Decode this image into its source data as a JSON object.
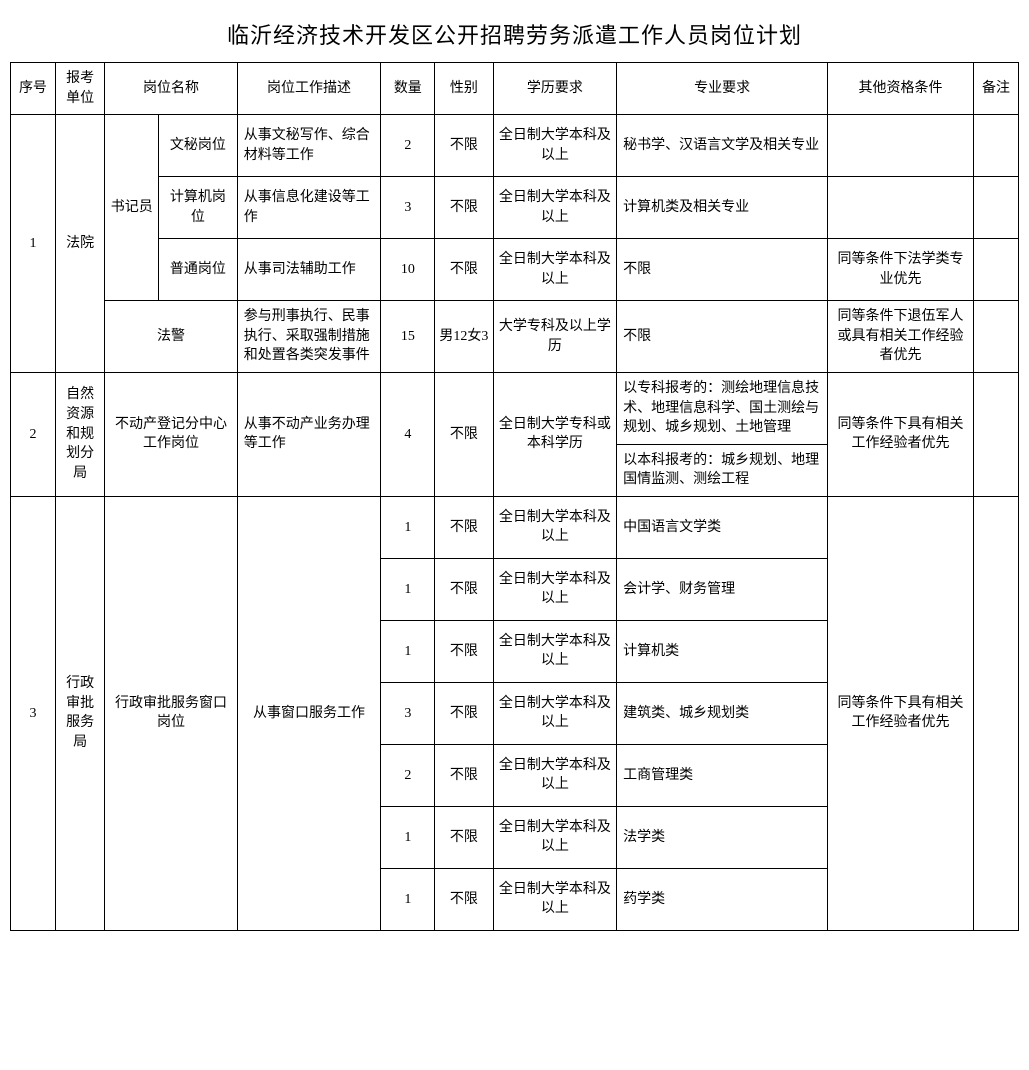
{
  "title": "临沂经济技术开发区公开招聘劳务派遣工作人员岗位计划",
  "headers": {
    "seq": "序号",
    "org": "报考单位",
    "position": "岗位名称",
    "desc": "岗位工作描述",
    "qty": "数量",
    "sex": "性别",
    "edu": "学历要求",
    "major": "专业要求",
    "other": "其他资格条件",
    "note": "备注"
  },
  "group1": {
    "seq": "1",
    "org": "法院",
    "shujiyuan": "书记员",
    "rows": [
      {
        "pos": "文秘岗位",
        "desc": "从事文秘写作、综合材料等工作",
        "qty": "2",
        "sex": "不限",
        "edu": "全日制大学本科及以上",
        "major": "秘书学、汉语言文学及相关专业",
        "other": "",
        "note": ""
      },
      {
        "pos": "计算机岗位",
        "desc": "从事信息化建设等工作",
        "qty": "3",
        "sex": "不限",
        "edu": "全日制大学本科及以上",
        "major": "计算机类及相关专业",
        "other": "",
        "note": ""
      },
      {
        "pos": "普通岗位",
        "desc": "从事司法辅助工作",
        "qty": "10",
        "sex": "不限",
        "edu": "全日制大学本科及以上",
        "major": "不限",
        "other": "同等条件下法学类专业优先",
        "note": ""
      }
    ],
    "fajing": {
      "pos": "法警",
      "desc": "参与刑事执行、民事执行、采取强制措施和处置各类突发事件",
      "qty": "15",
      "sex": "男12女3",
      "edu": "大学专科及以上学历",
      "major": "不限",
      "other": "同等条件下退伍军人或具有相关工作经验者优先",
      "note": ""
    }
  },
  "group2": {
    "seq": "2",
    "org": "自然资源和规划分局",
    "pos": "不动产登记分中心工作岗位",
    "desc": "从事不动产业务办理等工作",
    "qty": "4",
    "sex": "不限",
    "edu": "全日制大学专科或本科学历",
    "major1": "以专科报考的：测绘地理信息技术、地理信息科学、国土测绘与规划、城乡规划、土地管理",
    "major2": "以本科报考的：城乡规划、地理国情监测、测绘工程",
    "other": "同等条件下具有相关工作经验者优先",
    "note": ""
  },
  "group3": {
    "seq": "3",
    "org": "行政审批服务局",
    "pos": "行政审批服务窗口岗位",
    "desc": "从事窗口服务工作",
    "other": "同等条件下具有相关工作经验者优先",
    "rows": [
      {
        "qty": "1",
        "sex": "不限",
        "edu": "全日制大学本科及以上",
        "major": "中国语言文学类",
        "note": ""
      },
      {
        "qty": "1",
        "sex": "不限",
        "edu": "全日制大学本科及以上",
        "major": "会计学、财务管理",
        "note": ""
      },
      {
        "qty": "1",
        "sex": "不限",
        "edu": "全日制大学本科及以上",
        "major": "计算机类",
        "note": ""
      },
      {
        "qty": "3",
        "sex": "不限",
        "edu": "全日制大学本科及以上",
        "major": "建筑类、城乡规划类",
        "note": ""
      },
      {
        "qty": "2",
        "sex": "不限",
        "edu": "全日制大学本科及以上",
        "major": "工商管理类",
        "note": ""
      },
      {
        "qty": "1",
        "sex": "不限",
        "edu": "全日制大学本科及以上",
        "major": "法学类",
        "note": ""
      },
      {
        "qty": "1",
        "sex": "不限",
        "edu": "全日制大学本科及以上",
        "major": "药学类",
        "note": ""
      }
    ]
  }
}
